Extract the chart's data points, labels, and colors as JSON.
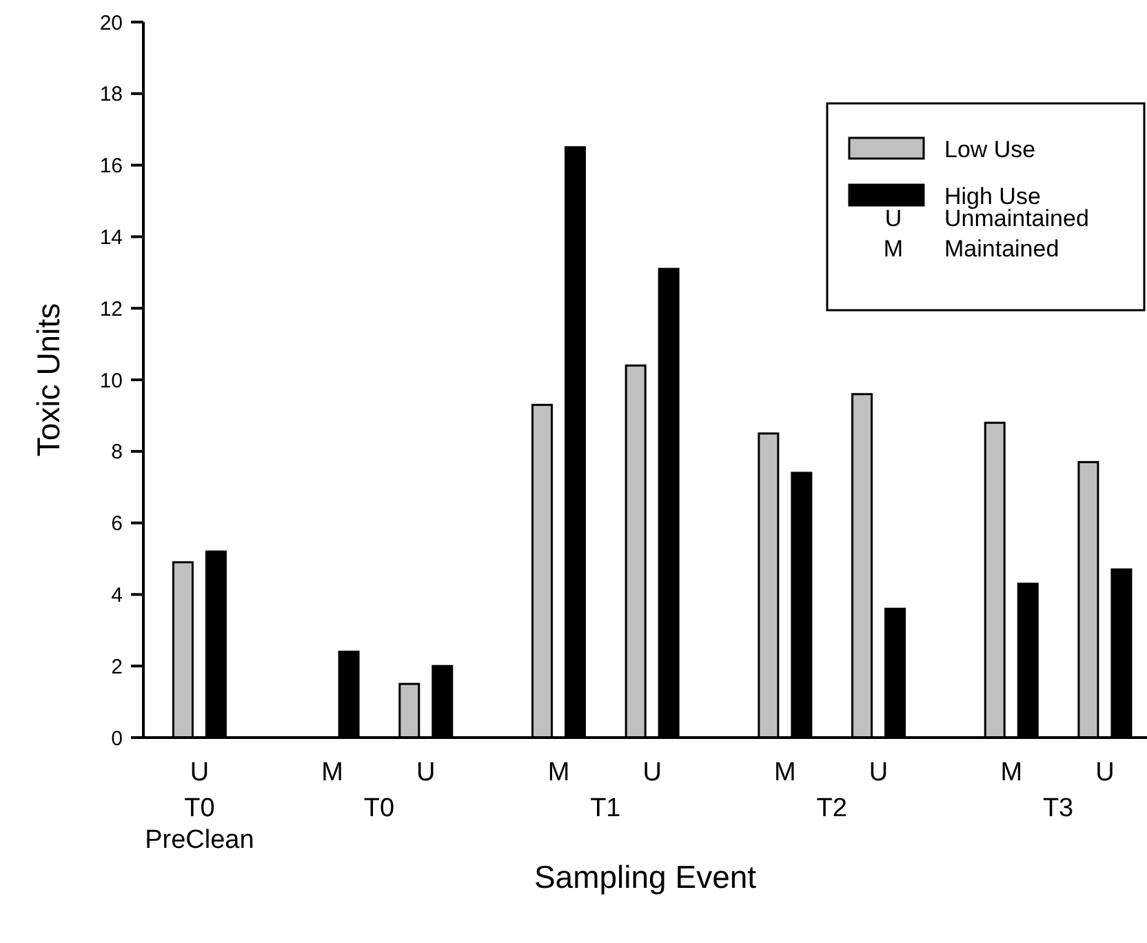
{
  "chart_data": {
    "type": "bar",
    "xlabel": "Sampling Event",
    "ylabel": "Toxic Units",
    "categories": [
      "U",
      "M",
      "U",
      "M",
      "U",
      "M",
      "U",
      "M",
      "U"
    ],
    "series": [
      {
        "name": "Low Use",
        "color": "#c0c0c0",
        "values": [
          4.9,
          null,
          1.5,
          9.3,
          10.4,
          8.5,
          9.6,
          8.8,
          7.7
        ]
      },
      {
        "name": "High Use",
        "color": "#000000",
        "values": [
          5.2,
          2.4,
          2.0,
          16.5,
          13.1,
          7.4,
          3.6,
          4.3,
          4.7
        ]
      }
    ],
    "ylim": [
      0,
      20
    ],
    "yticks": [
      0,
      2,
      4,
      6,
      8,
      10,
      12,
      14,
      16,
      18,
      20
    ],
    "legend": "top right",
    "grid": false,
    "annotations": [
      "T0 PreClean",
      "T0",
      "T1",
      "T2",
      "T3",
      "U Unmaintained",
      "M Maintained"
    ]
  }
}
